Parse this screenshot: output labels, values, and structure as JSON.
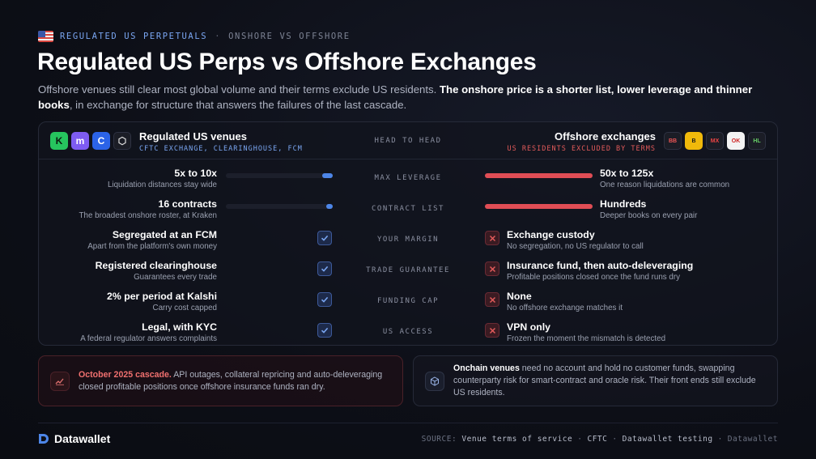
{
  "header": {
    "kicker_primary": "REGULATED US PERPETUALS",
    "kicker_secondary": "ONSHORE VS OFFSHORE",
    "title": "Regulated US Perps vs Offshore Exchanges",
    "subtitle_plain": "Offshore venues still clear most global volume and their terms exclude US residents. ",
    "subtitle_bold": "The onshore price is a shorter list, lower leverage and thinner books",
    "subtitle_tail": ", in exchange for structure that answers the failures of the last cascade."
  },
  "panel": {
    "left_title": "Regulated US venues",
    "left_subtitle": "CFTC EXCHANGE, CLEARINGHOUSE, FCM",
    "center_title": "HEAD TO HEAD",
    "right_title": "Offshore exchanges",
    "right_subtitle": "US RESIDENTS EXCLUDED BY TERMS",
    "left_logos": [
      "K",
      "m",
      "C",
      "⬡"
    ],
    "right_logos": [
      "BB",
      "B",
      "MX",
      "OK",
      "HL"
    ],
    "rows": [
      {
        "label": "MAX LEVERAGE",
        "left_main": "5x to 10x",
        "left_sub": "Liquidation distances stay wide",
        "right_main": "50x to 125x",
        "right_sub": "One reason liquidations are common",
        "type": "bar",
        "left_fill": 0.1,
        "right_fill": 1.0
      },
      {
        "label": "CONTRACT LIST",
        "left_main": "16 contracts",
        "left_sub": "The broadest onshore roster, at Kraken",
        "right_main": "Hundreds",
        "right_sub": "Deeper books on every pair",
        "type": "bar",
        "left_fill": 0.05,
        "right_fill": 1.0
      },
      {
        "label": "YOUR MARGIN",
        "left_main": "Segregated at an FCM",
        "left_sub": "Apart from the platform's own money",
        "right_main": "Exchange custody",
        "right_sub": "No segregation, no US regulator to call",
        "type": "check"
      },
      {
        "label": "TRADE GUARANTEE",
        "left_main": "Registered clearinghouse",
        "left_sub": "Guarantees every trade",
        "right_main": "Insurance fund, then auto-deleveraging",
        "right_sub": "Profitable positions closed once the fund runs dry",
        "type": "check"
      },
      {
        "label": "FUNDING CAP",
        "left_main": "2% per period at Kalshi",
        "left_sub": "Carry cost capped",
        "right_main": "None",
        "right_sub": "No offshore exchange matches it",
        "type": "check"
      },
      {
        "label": "US ACCESS",
        "left_main": "Legal, with KYC",
        "left_sub": "A federal regulator answers complaints",
        "right_main": "VPN only",
        "right_sub": "Frozen the moment the mismatch is detected",
        "type": "check"
      }
    ]
  },
  "cards": {
    "cascade_highlight": "October 2025 cascade.",
    "cascade_text": " API outages, collateral repricing and auto-deleveraging closed profitable positions once offshore insurance funds ran dry.",
    "onchain_highlight": "Onchain venues",
    "onchain_text": " need no account and hold no customer funds, swapping counterparty risk for smart-contract and oracle risk. Their front ends still exclude US residents."
  },
  "footer": {
    "brand": "Datawallet",
    "source_label": "SOURCE:",
    "sources": [
      "Venue terms of service",
      "CFTC",
      "Datawallet testing"
    ],
    "credit": "Datawallet"
  },
  "colors": {
    "accent_blue": "#4d86e8",
    "accent_red": "#e04d55",
    "background": "#0d0f17"
  }
}
